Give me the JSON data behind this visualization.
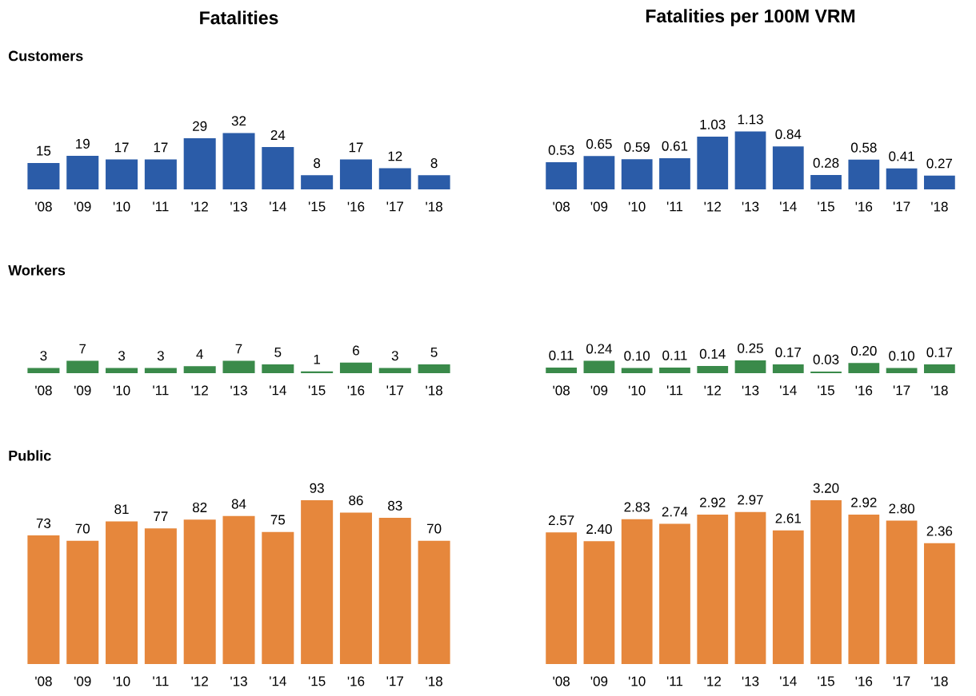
{
  "chart_data": [
    {
      "type": "bar",
      "title": "Fatalities",
      "subtitle": "Customers",
      "categories": [
        "'08",
        "'09",
        "'10",
        "'11",
        "'12",
        "'13",
        "'14",
        "'15",
        "'16",
        "'17",
        "'18"
      ],
      "values": [
        15,
        19,
        17,
        17,
        29,
        32,
        24,
        8,
        17,
        12,
        8
      ],
      "color": "#2b5ca8",
      "data_labels": true
    },
    {
      "type": "bar",
      "title": "Fatalities per 100M VRM",
      "categories": [
        "'08",
        "'09",
        "'10",
        "'11",
        "'12",
        "'13",
        "'14",
        "'15",
        "'16",
        "'17",
        "'18"
      ],
      "values": [
        0.53,
        0.65,
        0.59,
        0.61,
        1.03,
        1.13,
        0.84,
        0.28,
        0.58,
        0.41,
        0.27
      ],
      "value_labels": [
        "0.53",
        "0.65",
        "0.59",
        "0.61",
        "1.03",
        "1.13",
        "0.84",
        "0.28",
        "0.58",
        "0.41",
        "0.27"
      ],
      "color": "#2b5ca8"
    },
    {
      "type": "bar",
      "subtitle": "Workers",
      "categories": [
        "'08",
        "'09",
        "'10",
        "'11",
        "'12",
        "'13",
        "'14",
        "'15",
        "'16",
        "'17",
        "'18"
      ],
      "values": [
        3,
        7,
        3,
        3,
        4,
        7,
        5,
        1,
        6,
        3,
        5
      ],
      "color": "#3a8a4a",
      "data_labels": true
    },
    {
      "type": "bar",
      "categories": [
        "'08",
        "'09",
        "'10",
        "'11",
        "'12",
        "'13",
        "'14",
        "'15",
        "'16",
        "'17",
        "'18"
      ],
      "values": [
        0.11,
        0.24,
        0.1,
        0.11,
        0.14,
        0.25,
        0.17,
        0.03,
        0.2,
        0.1,
        0.17
      ],
      "value_labels": [
        "0.11",
        "0.24",
        "0.10",
        "0.11",
        "0.14",
        "0.25",
        "0.17",
        "0.03",
        "0.20",
        "0.10",
        "0.17"
      ],
      "color": "#3a8a4a"
    },
    {
      "type": "bar",
      "subtitle": "Public",
      "categories": [
        "'08",
        "'09",
        "'10",
        "'11",
        "'12",
        "'13",
        "'14",
        "'15",
        "'16",
        "'17",
        "'18"
      ],
      "values": [
        73,
        70,
        81,
        77,
        82,
        84,
        75,
        93,
        86,
        83,
        70
      ],
      "color": "#e6873c",
      "data_labels": true
    },
    {
      "type": "bar",
      "categories": [
        "'08",
        "'09",
        "'10",
        "'11",
        "'12",
        "'13",
        "'14",
        "'15",
        "'16",
        "'17",
        "'18"
      ],
      "values": [
        2.57,
        2.4,
        2.83,
        2.74,
        2.92,
        2.97,
        2.61,
        3.2,
        2.92,
        2.8,
        2.36
      ],
      "value_labels": [
        "2.57",
        "2.40",
        "2.83",
        "2.74",
        "2.92",
        "2.97",
        "2.61",
        "3.20",
        "2.92",
        "2.80",
        "2.36"
      ],
      "color": "#e6873c"
    }
  ]
}
